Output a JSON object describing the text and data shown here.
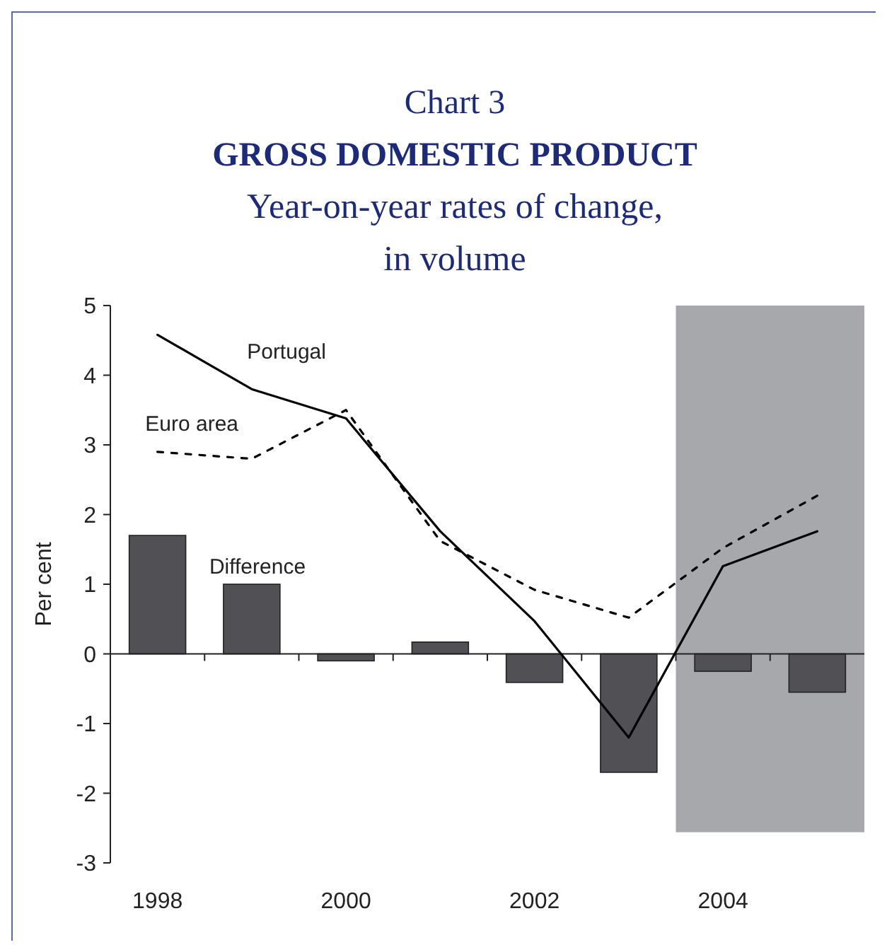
{
  "chart_data": {
    "type": "bar",
    "title": "GROSS DOMESTIC PRODUCT",
    "subtitle": "Year-on-year rates of change, in volume",
    "annotations": [
      "Chart 3"
    ],
    "ylabel": "Per cent",
    "x": [
      1998,
      1999,
      2000,
      2001,
      2002,
      2003,
      2004,
      2005
    ],
    "xlim": [
      1997.5,
      2005.5
    ],
    "xticks": [
      {
        "value": 1998,
        "label": "1998"
      },
      {
        "value": 2000,
        "label": "2000"
      },
      {
        "value": 2002,
        "label": "2002"
      },
      {
        "value": 2004,
        "label": "2004"
      },
      {
        "value": 1998.5,
        "label": null
      },
      {
        "value": 1999.5,
        "label": null
      },
      {
        "value": 2000.5,
        "label": null
      },
      {
        "value": 2001.5,
        "label": null
      },
      {
        "value": 2002.5,
        "label": null
      },
      {
        "value": 2003.5,
        "label": null
      },
      {
        "value": 2004.5,
        "label": null
      }
    ],
    "ylim": [
      -3,
      5
    ],
    "yticks": [
      -3,
      -2,
      -1,
      0,
      1,
      2,
      3,
      4,
      5
    ],
    "bands": [
      {
        "axis": "x",
        "from": 2003.5,
        "to": 2005.5,
        "color": "#a7a8ac"
      }
    ],
    "series": [
      {
        "name": "Difference",
        "color": "#505055",
        "values": [
          1.7,
          1.0,
          -0.1,
          0.17,
          -0.41,
          -1.7,
          -0.25,
          -0.55
        ]
      },
      {
        "name": "Portugal",
        "type": "line",
        "color": "#000000",
        "line_style": "solid",
        "values": [
          4.58,
          3.8,
          3.38,
          1.76,
          0.47,
          -1.2,
          1.26,
          1.76
        ]
      },
      {
        "name": "Euro area",
        "type": "line",
        "color": "#000000",
        "line_style": "dashed",
        "values": [
          2.9,
          2.8,
          3.5,
          1.62,
          0.92,
          0.52,
          1.52,
          2.27
        ]
      }
    ]
  }
}
